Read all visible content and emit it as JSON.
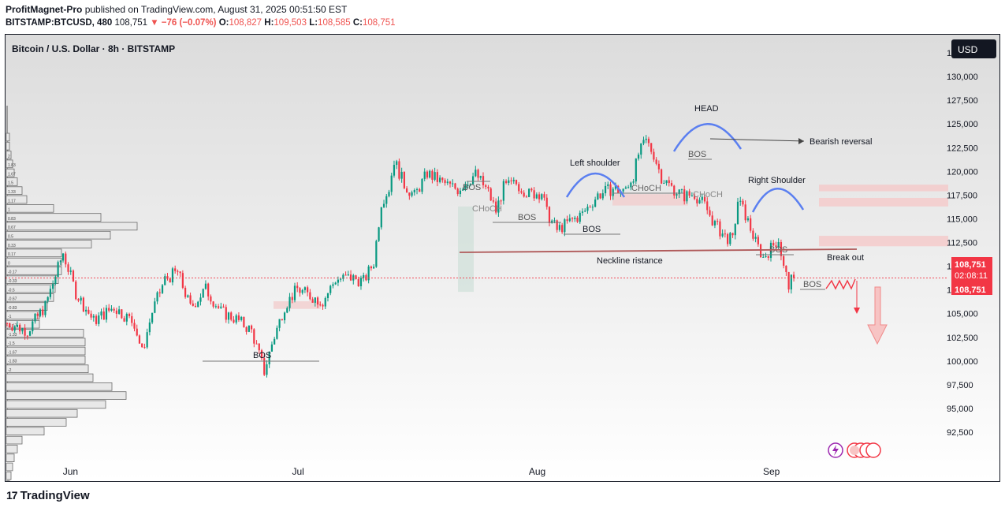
{
  "header": {
    "publisher": "ProfitMagnet-Pro",
    "published_on": "published on TradingView.com, August 31, 2025 00:51:50 EST",
    "symbol_line": "BITSTAMP:BTCUSD, 480",
    "last": "108,751",
    "change": "▼ −76 (−0.07%)",
    "o_label": "O:",
    "o_value": "108,827",
    "h_label": "H:",
    "h_value": "109,503",
    "l_label": "L:",
    "l_value": "108,585",
    "c_label": "C:",
    "c_value": "108,751"
  },
  "chart_title": "Bitcoin / U.S. Dollar · 8h · BITSTAMP",
  "currency_button": "USD",
  "price_tag": {
    "price": "108,751",
    "countdown": "02:08:11",
    "price2": "108,751"
  },
  "logo_text": "TradingView",
  "colors": {
    "up": "#089981",
    "down": "#f23645",
    "accent_blue": "#5b7ff0",
    "neckline": "#b05a5a"
  },
  "chart_data": {
    "type": "candlestick",
    "symbol": "BTCUSD",
    "timeframe": "8h",
    "ylim": [
      91000,
      134000
    ],
    "y_ticks": [
      92500,
      95000,
      97500,
      100000,
      102500,
      105000,
      107500,
      110000,
      112500,
      115000,
      117500,
      120000,
      122500,
      125000,
      127500,
      130000,
      132500
    ],
    "y_tick_labels": [
      "92,500",
      "95,000",
      "97,500",
      "100,000",
      "102,500",
      "105,000",
      "107,500",
      "110,000",
      "112,500",
      "115,000",
      "117,500",
      "120,000",
      "122,500",
      "125,000",
      "127,500",
      "130,000",
      "132,500"
    ],
    "x_ticks": [
      {
        "label": "Jun",
        "index": 25
      },
      {
        "label": "Jul",
        "index": 115
      },
      {
        "label": "Aug",
        "index": 208
      },
      {
        "label": "Sep",
        "index": 300
      }
    ],
    "last_price": 108751,
    "close_path": [
      [
        0,
        104000
      ],
      [
        8,
        103200
      ],
      [
        15,
        105800
      ],
      [
        22,
        111400
      ],
      [
        27,
        107200
      ],
      [
        34,
        104200
      ],
      [
        42,
        105700
      ],
      [
        50,
        104000
      ],
      [
        53,
        100900
      ],
      [
        57,
        105200
      ],
      [
        62,
        108600
      ],
      [
        67,
        109400
      ],
      [
        72,
        105600
      ],
      [
        78,
        107600
      ],
      [
        84,
        105200
      ],
      [
        90,
        104400
      ],
      [
        96,
        103200
      ],
      [
        101,
        98900
      ],
      [
        104,
        101800
      ],
      [
        109,
        105800
      ],
      [
        114,
        107600
      ],
      [
        118,
        107000
      ],
      [
        124,
        106300
      ],
      [
        129,
        108600
      ],
      [
        135,
        108800
      ],
      [
        140,
        108400
      ],
      [
        144,
        110400
      ],
      [
        147,
        116800
      ],
      [
        150,
        118200
      ],
      [
        152,
        121200
      ],
      [
        156,
        118600
      ],
      [
        160,
        117400
      ],
      [
        165,
        119800
      ],
      [
        171,
        118800
      ],
      [
        177,
        118100
      ],
      [
        184,
        119700
      ],
      [
        189,
        117800
      ],
      [
        192,
        115800
      ],
      [
        195,
        118300
      ],
      [
        200,
        118700
      ],
      [
        205,
        117600
      ],
      [
        210,
        117800
      ],
      [
        212,
        115600
      ],
      [
        216,
        113800
      ],
      [
        221,
        114700
      ],
      [
        226,
        115500
      ],
      [
        232,
        117500
      ],
      [
        238,
        118200
      ],
      [
        242,
        117800
      ],
      [
        246,
        119600
      ],
      [
        248,
        121800
      ],
      [
        251,
        123200
      ],
      [
        254,
        121800
      ],
      [
        257,
        119400
      ],
      [
        261,
        118300
      ],
      [
        266,
        117400
      ],
      [
        270,
        117600
      ],
      [
        274,
        116400
      ],
      [
        278,
        114400
      ],
      [
        282,
        113100
      ],
      [
        285,
        112700
      ],
      [
        287,
        116900
      ],
      [
        290,
        115400
      ],
      [
        294,
        112500
      ],
      [
        297,
        110900
      ],
      [
        300,
        111900
      ],
      [
        303,
        112900
      ],
      [
        305,
        109800
      ],
      [
        307,
        108100
      ],
      [
        309,
        108751
      ]
    ],
    "volume_profile_labels": [
      "-2",
      "-1.83",
      "-1.67",
      "-1.5",
      "-1.33",
      "-1.17",
      "-1",
      "-0.83",
      "-0.67",
      "-0.5",
      "-0.33",
      "-0.17",
      "0",
      "0.17",
      "0.33",
      "0.5",
      "0.67",
      "0.83",
      "1",
      "1.17",
      "1.33",
      "1.5",
      "1.67",
      "1.83",
      "2"
    ],
    "annotations": [
      {
        "text": "BOS",
        "kind": "label"
      },
      {
        "text": "BOS",
        "kind": "label"
      },
      {
        "text": "BOS",
        "kind": "label"
      },
      {
        "text": "BOS",
        "kind": "label"
      },
      {
        "text": "BOS",
        "kind": "label"
      },
      {
        "text": "BOS",
        "kind": "label"
      },
      {
        "text": "BOS",
        "kind": "label"
      },
      {
        "text": "CHoCH",
        "kind": "label"
      },
      {
        "text": "CHoCH",
        "kind": "label"
      },
      {
        "text": "CHoCH",
        "kind": "label"
      },
      {
        "text": "Left shoulder",
        "kind": "label"
      },
      {
        "text": "HEAD",
        "kind": "label"
      },
      {
        "text": "Right Shoulder",
        "kind": "label"
      },
      {
        "text": "Bearish reversal",
        "kind": "label"
      },
      {
        "text": "Neckline ristance",
        "kind": "label"
      },
      {
        "text": "Break out",
        "kind": "label"
      }
    ]
  }
}
